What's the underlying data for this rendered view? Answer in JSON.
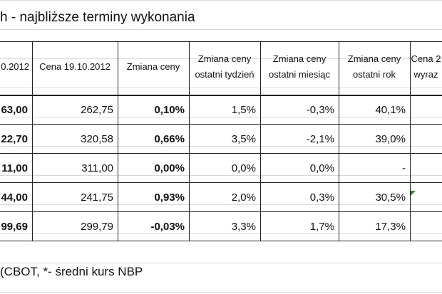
{
  "title": "h - najbliższe terminy wykonania",
  "table": {
    "header": [
      [
        ".0.2012"
      ],
      [
        "Cena 19.10.2012"
      ],
      [
        "Zmiana ceny"
      ],
      [
        "Zmiana ceny",
        "ostatni tydzień"
      ],
      [
        "Zmiana ceny",
        "ostatni miesiąc"
      ],
      [
        "Zmiana ceny",
        "ostatni rok"
      ],
      [
        "Cena 2",
        "wyraz"
      ]
    ],
    "rows": [
      [
        "63,00",
        "262,75",
        "0,10%",
        "1,5%",
        "-0,3%",
        "40,1%"
      ],
      [
        "22,70",
        "320,58",
        "0,66%",
        "3,5%",
        "-2,1%",
        "39,0%"
      ],
      [
        "11,00",
        "311,00",
        "0,00%",
        "0,0%",
        "0,0%",
        "-"
      ],
      [
        "44,00",
        "241,75",
        "0,93%",
        "2,0%",
        "0,3%",
        "30,5%"
      ],
      [
        "99,69",
        "299,79",
        "-0,03%",
        "3,3%",
        "1,7%",
        "17,3%"
      ]
    ]
  },
  "footer": "(CBOT, *- średni kurs NBP"
}
